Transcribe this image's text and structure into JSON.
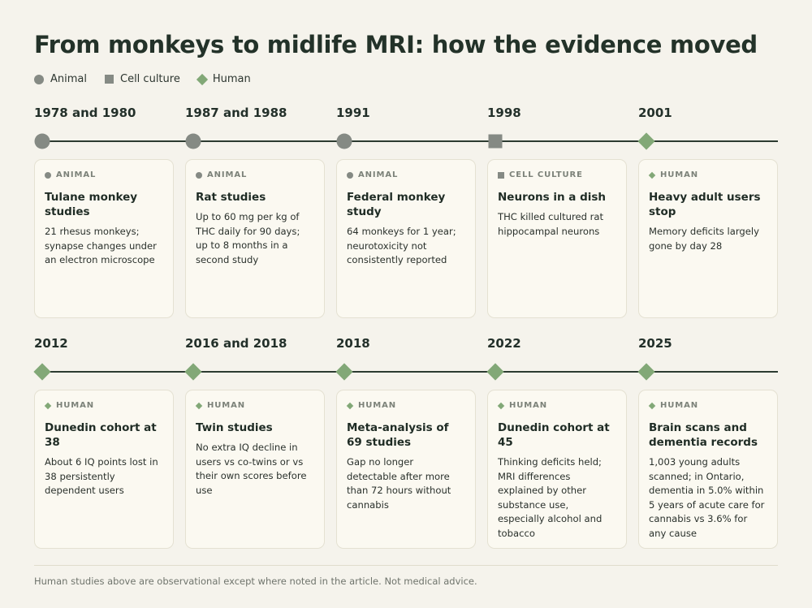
{
  "title": "From monkeys to midlife MRI: how the evidence moved",
  "legend": [
    {
      "label": "Animal",
      "shape": "circle",
      "color": "#858a84"
    },
    {
      "label": "Cell culture",
      "shape": "square",
      "color": "#858a84"
    },
    {
      "label": "Human",
      "shape": "diamond",
      "color": "#82a877"
    }
  ],
  "rows": [
    {
      "events": [
        {
          "year": "1978 and 1980",
          "shape": "circle",
          "category": "ANIMAL",
          "title": "Tulane monkey studies",
          "desc": "21 rhesus monkeys; synapse changes under an electron microscope"
        },
        {
          "year": "1987 and 1988",
          "shape": "circle",
          "category": "ANIMAL",
          "title": "Rat studies",
          "desc": "Up to 60 mg per kg of THC daily for 90 days; up to 8 months in a second study"
        },
        {
          "year": "1991",
          "shape": "circle",
          "category": "ANIMAL",
          "title": "Federal monkey study",
          "desc": "64 monkeys for 1 year; neurotoxicity not consistently reported"
        },
        {
          "year": "1998",
          "shape": "square",
          "category": "CELL CULTURE",
          "title": "Neurons in a dish",
          "desc": "THC killed cultured rat hippocampal neurons"
        },
        {
          "year": "2001",
          "shape": "diamond",
          "category": "HUMAN",
          "title": "Heavy adult users stop",
          "desc": "Memory deficits largely gone by day 28"
        }
      ]
    },
    {
      "events": [
        {
          "year": "2012",
          "shape": "diamond",
          "category": "HUMAN",
          "title": "Dunedin cohort at 38",
          "desc": "About 6 IQ points lost in 38 persistently dependent users"
        },
        {
          "year": "2016 and 2018",
          "shape": "diamond",
          "category": "HUMAN",
          "title": "Twin studies",
          "desc": "No extra IQ decline in users vs co-twins or vs their own scores before use"
        },
        {
          "year": "2018",
          "shape": "diamond",
          "category": "HUMAN",
          "title": "Meta-analysis of 69 studies",
          "desc": "Gap no longer detectable after more than 72 hours without cannabis"
        },
        {
          "year": "2022",
          "shape": "diamond",
          "category": "HUMAN",
          "title": "Dunedin cohort at 45",
          "desc": "Thinking deficits held; MRI differences explained by other substance use, especially alcohol and tobacco"
        },
        {
          "year": "2025",
          "shape": "diamond",
          "category": "HUMAN",
          "title": "Brain scans and dementia records",
          "desc": "1,003 young adults scanned; in Ontario, dementia in 5.0% within 5 years of acute care for cannabis vs 3.6% for any cause"
        }
      ]
    }
  ],
  "footnote": "Human studies above are observational except where noted in the article. Not medical advice."
}
